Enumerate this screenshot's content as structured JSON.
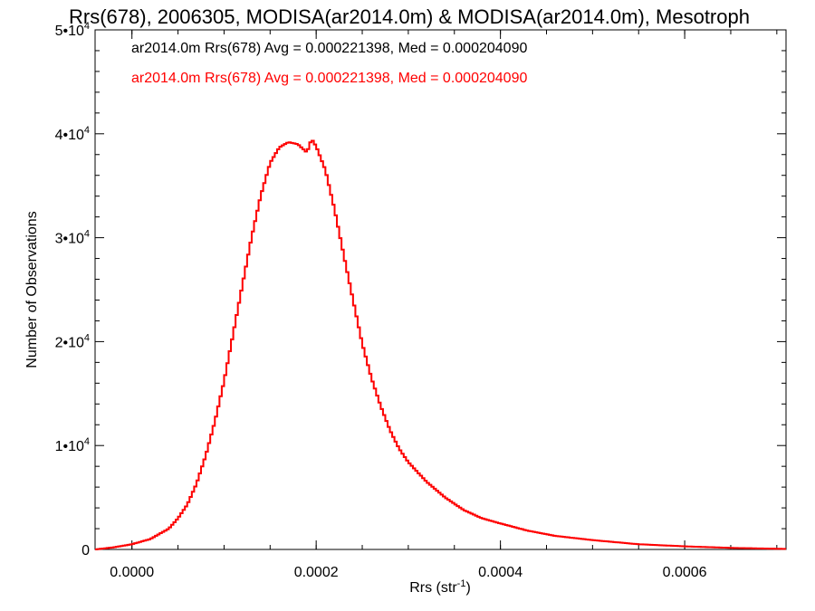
{
  "chart_data": {
    "type": "histogram-step",
    "title": "Rrs(678), 2006305, MODISA(ar2014.0m) & MODISA(ar2014.0m), Mesotroph",
    "xlabel": "Rrs (str",
    "xlabel_sup": "-1",
    "xlabel_end": ")",
    "ylabel": "Number of Observations",
    "xlim": [
      -4e-05,
      0.00071
    ],
    "ylim": [
      0,
      50000
    ],
    "x_ticks": [
      {
        "value": 0.0,
        "label": "0.0000"
      },
      {
        "value": 0.0002,
        "label": "0.0002"
      },
      {
        "value": 0.0004,
        "label": "0.0004"
      },
      {
        "value": 0.0006,
        "label": "0.0006"
      }
    ],
    "y_ticks": [
      {
        "value": 0,
        "mant": "0",
        "exp": ""
      },
      {
        "value": 10000,
        "mant": "1•10",
        "exp": "4"
      },
      {
        "value": 20000,
        "mant": "2•10",
        "exp": "4"
      },
      {
        "value": 30000,
        "mant": "3•10",
        "exp": "4"
      },
      {
        "value": 40000,
        "mant": "4•10",
        "exp": "4"
      },
      {
        "value": 50000,
        "mant": "5•10",
        "exp": "4"
      }
    ],
    "legend": [
      {
        "text": "ar2014.0m Rrs(678) Avg = 0.000221398, Med = 0.000204090",
        "color": "#000000"
      },
      {
        "text": "ar2014.0m Rrs(678) Avg = 0.000221398, Med = 0.000204090",
        "color": "#ff0000"
      }
    ],
    "series": [
      {
        "color_1": "#000000",
        "color_2": "#ff0000",
        "bin_width": 2.5e-06,
        "x": [
          -4e-05,
          -2e-05,
          0.0,
          2e-05,
          4e-05,
          5e-05,
          6e-05,
          7e-05,
          8e-05,
          9e-05,
          0.0001,
          0.00011,
          0.00012,
          0.00013,
          0.00014,
          0.00015,
          0.00016,
          0.00017,
          0.00018,
          0.00019,
          0.000195,
          0.0002,
          0.00021,
          0.00022,
          0.00023,
          0.00024,
          0.00025,
          0.00026,
          0.00027,
          0.00028,
          0.00029,
          0.0003,
          0.00032,
          0.00034,
          0.00036,
          0.00038,
          0.0004,
          0.00043,
          0.00046,
          0.0005,
          0.00055,
          0.0006,
          0.00065,
          0.00071
        ],
        "y": [
          0,
          200,
          500,
          1000,
          2000,
          3000,
          4300,
          6300,
          9000,
          12300,
          16200,
          20800,
          25500,
          30100,
          34100,
          37200,
          38700,
          39200,
          39000,
          38200,
          39500,
          38800,
          36500,
          32700,
          28300,
          24000,
          19800,
          16500,
          13800,
          11500,
          9700,
          8400,
          6500,
          5000,
          3800,
          3000,
          2500,
          1800,
          1300,
          900,
          500,
          300,
          150,
          50
        ]
      }
    ]
  }
}
